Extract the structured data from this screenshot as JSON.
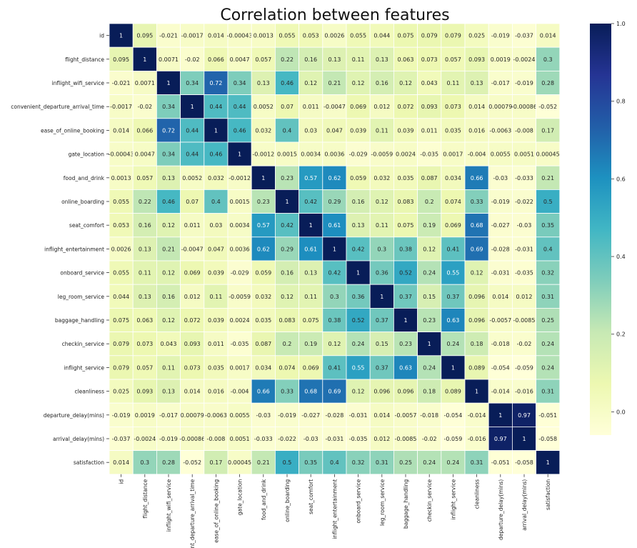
{
  "chart_data": {
    "type": "heatmap",
    "title": "Correlation between features",
    "colormap": "YlGnBu",
    "vmin": -0.06,
    "vmax": 1.0,
    "grid_lines": true,
    "annotated": true,
    "labels": [
      "id",
      "flight_distance",
      "inflight_wifi_service",
      "convenient_departure_arrival_time",
      "ease_of_online_booking",
      "gate_location",
      "food_and_drink",
      "online_boarding",
      "seat_comfort",
      "inflight_entertainment",
      "onboard_service",
      "leg_room_service",
      "baggage_handling",
      "checkin_service",
      "inflight_service",
      "cleanliness",
      "departure_delay(mins)",
      "arrival_delay(mins)",
      "satisfaction"
    ],
    "matrix": [
      [
        "1",
        "0.095",
        "-0.021",
        "-0.0017",
        "0.014",
        "-0.00043",
        "0.0013",
        "0.055",
        "0.053",
        "0.0026",
        "0.055",
        "0.044",
        "0.075",
        "0.079",
        "0.079",
        "0.025",
        "-0.019",
        "-0.037",
        "0.014"
      ],
      [
        "0.095",
        "1",
        "0.0071",
        "-0.02",
        "0.066",
        "0.0047",
        "0.057",
        "0.22",
        "0.16",
        "0.13",
        "0.11",
        "0.13",
        "0.063",
        "0.073",
        "0.057",
        "0.093",
        "0.0019",
        "-0.0024",
        "0.3"
      ],
      [
        "-0.021",
        "0.0071",
        "1",
        "0.34",
        "0.72",
        "0.34",
        "0.13",
        "0.46",
        "0.12",
        "0.21",
        "0.12",
        "0.16",
        "0.12",
        "0.043",
        "0.11",
        "0.13",
        "-0.017",
        "-0.019",
        "0.28"
      ],
      [
        "-0.0017",
        "-0.02",
        "0.34",
        "1",
        "0.44",
        "0.44",
        "0.0052",
        "0.07",
        "0.011",
        "-0.0047",
        "0.069",
        "0.012",
        "0.072",
        "0.093",
        "0.073",
        "0.014",
        "0.00079",
        "-0.00086",
        "-0.052"
      ],
      [
        "0.014",
        "0.066",
        "0.72",
        "0.44",
        "1",
        "0.46",
        "0.032",
        "0.4",
        "0.03",
        "0.047",
        "0.039",
        "0.11",
        "0.039",
        "0.011",
        "0.035",
        "0.016",
        "-0.0063",
        "-0.008",
        "0.17"
      ],
      [
        "-0.00043",
        "0.0047",
        "0.34",
        "0.44",
        "0.46",
        "1",
        "-0.0012",
        "0.0015",
        "0.0034",
        "0.0036",
        "-0.029",
        "-0.0059",
        "0.0024",
        "-0.035",
        "0.0017",
        "-0.004",
        "0.0055",
        "0.0051",
        "0.00045"
      ],
      [
        "0.0013",
        "0.057",
        "0.13",
        "0.0052",
        "0.032",
        "-0.0012",
        "1",
        "0.23",
        "0.57",
        "0.62",
        "0.059",
        "0.032",
        "0.035",
        "0.087",
        "0.034",
        "0.66",
        "-0.03",
        "-0.033",
        "0.21"
      ],
      [
        "0.055",
        "0.22",
        "0.46",
        "0.07",
        "0.4",
        "0.0015",
        "0.23",
        "1",
        "0.42",
        "0.29",
        "0.16",
        "0.12",
        "0.083",
        "0.2",
        "0.074",
        "0.33",
        "-0.019",
        "-0.022",
        "0.5"
      ],
      [
        "0.053",
        "0.16",
        "0.12",
        "0.011",
        "0.03",
        "0.0034",
        "0.57",
        "0.42",
        "1",
        "0.61",
        "0.13",
        "0.11",
        "0.075",
        "0.19",
        "0.069",
        "0.68",
        "-0.027",
        "-0.03",
        "0.35"
      ],
      [
        "0.0026",
        "0.13",
        "0.21",
        "-0.0047",
        "0.047",
        "0.0036",
        "0.62",
        "0.29",
        "0.61",
        "1",
        "0.42",
        "0.3",
        "0.38",
        "0.12",
        "0.41",
        "0.69",
        "-0.028",
        "-0.031",
        "0.4"
      ],
      [
        "0.055",
        "0.11",
        "0.12",
        "0.069",
        "0.039",
        "-0.029",
        "0.059",
        "0.16",
        "0.13",
        "0.42",
        "1",
        "0.36",
        "0.52",
        "0.24",
        "0.55",
        "0.12",
        "-0.031",
        "-0.035",
        "0.32"
      ],
      [
        "0.044",
        "0.13",
        "0.16",
        "0.012",
        "0.11",
        "-0.0059",
        "0.032",
        "0.12",
        "0.11",
        "0.3",
        "0.36",
        "1",
        "0.37",
        "0.15",
        "0.37",
        "0.096",
        "0.014",
        "0.012",
        "0.31"
      ],
      [
        "0.075",
        "0.063",
        "0.12",
        "0.072",
        "0.039",
        "0.0024",
        "0.035",
        "0.083",
        "0.075",
        "0.38",
        "0.52",
        "0.37",
        "1",
        "0.23",
        "0.63",
        "0.096",
        "-0.0057",
        "-0.0085",
        "0.25"
      ],
      [
        "0.079",
        "0.073",
        "0.043",
        "0.093",
        "0.011",
        "-0.035",
        "0.087",
        "0.2",
        "0.19",
        "0.12",
        "0.24",
        "0.15",
        "0.23",
        "1",
        "0.24",
        "0.18",
        "-0.018",
        "-0.02",
        "0.24"
      ],
      [
        "0.079",
        "0.057",
        "0.11",
        "0.073",
        "0.035",
        "0.0017",
        "0.034",
        "0.074",
        "0.069",
        "0.41",
        "0.55",
        "0.37",
        "0.63",
        "0.24",
        "1",
        "0.089",
        "-0.054",
        "-0.059",
        "0.24"
      ],
      [
        "0.025",
        "0.093",
        "0.13",
        "0.014",
        "0.016",
        "-0.004",
        "0.66",
        "0.33",
        "0.68",
        "0.69",
        "0.12",
        "0.096",
        "0.096",
        "0.18",
        "0.089",
        "1",
        "-0.014",
        "-0.016",
        "0.31"
      ],
      [
        "-0.019",
        "0.0019",
        "-0.017",
        "0.00079",
        "-0.0063",
        "0.0055",
        "-0.03",
        "-0.019",
        "-0.027",
        "-0.028",
        "-0.031",
        "0.014",
        "-0.0057",
        "-0.018",
        "-0.054",
        "-0.014",
        "1",
        "0.97",
        "-0.051"
      ],
      [
        "-0.037",
        "-0.0024",
        "-0.019",
        "-0.00086",
        "-0.008",
        "0.0051",
        "-0.033",
        "-0.022",
        "-0.03",
        "-0.031",
        "-0.035",
        "0.012",
        "-0.0085",
        "-0.02",
        "-0.059",
        "-0.016",
        "0.97",
        "1",
        "-0.058"
      ],
      [
        "0.014",
        "0.3",
        "0.28",
        "-0.052",
        "0.17",
        "0.00045",
        "0.21",
        "0.5",
        "0.35",
        "0.4",
        "0.32",
        "0.31",
        "0.25",
        "0.24",
        "0.24",
        "0.31",
        "-0.051",
        "-0.058",
        "1"
      ]
    ],
    "colorbar": {
      "ticks": [
        0.0,
        0.2,
        0.4,
        0.6,
        0.8,
        1.0
      ],
      "tick_labels": [
        "0.0",
        "0.2",
        "0.4",
        "0.6",
        "0.8",
        "1.0"
      ]
    }
  }
}
